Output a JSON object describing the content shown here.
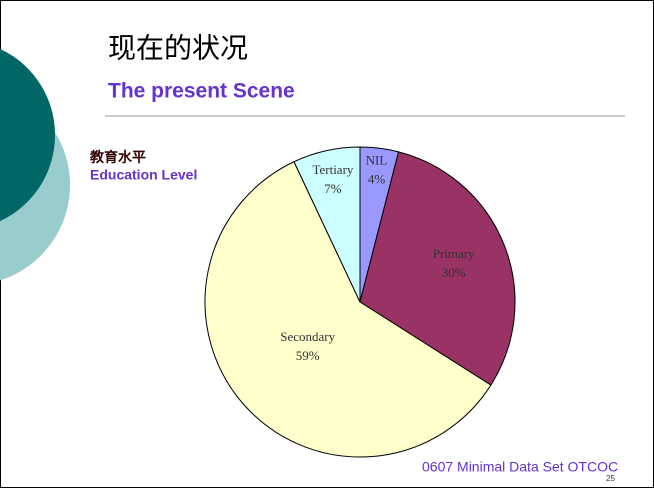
{
  "slide": {
    "title_cn": "现在的状况",
    "title_en": "The present Scene",
    "subtitle_cn": "教育水平",
    "subtitle_en": "Education Level",
    "footer": "0607 Minimal Data Set OTCOC",
    "page_number": "25"
  },
  "chart_data": {
    "type": "pie",
    "categories": [
      "NIL",
      "Primary",
      "Secondary",
      "Tertiary"
    ],
    "values": [
      4,
      30,
      59,
      7
    ],
    "value_labels": [
      "4%",
      "30%",
      "59%",
      "7%"
    ],
    "colors": [
      "#9999ff",
      "#993366",
      "#ffffcc",
      "#ccffff"
    ]
  }
}
